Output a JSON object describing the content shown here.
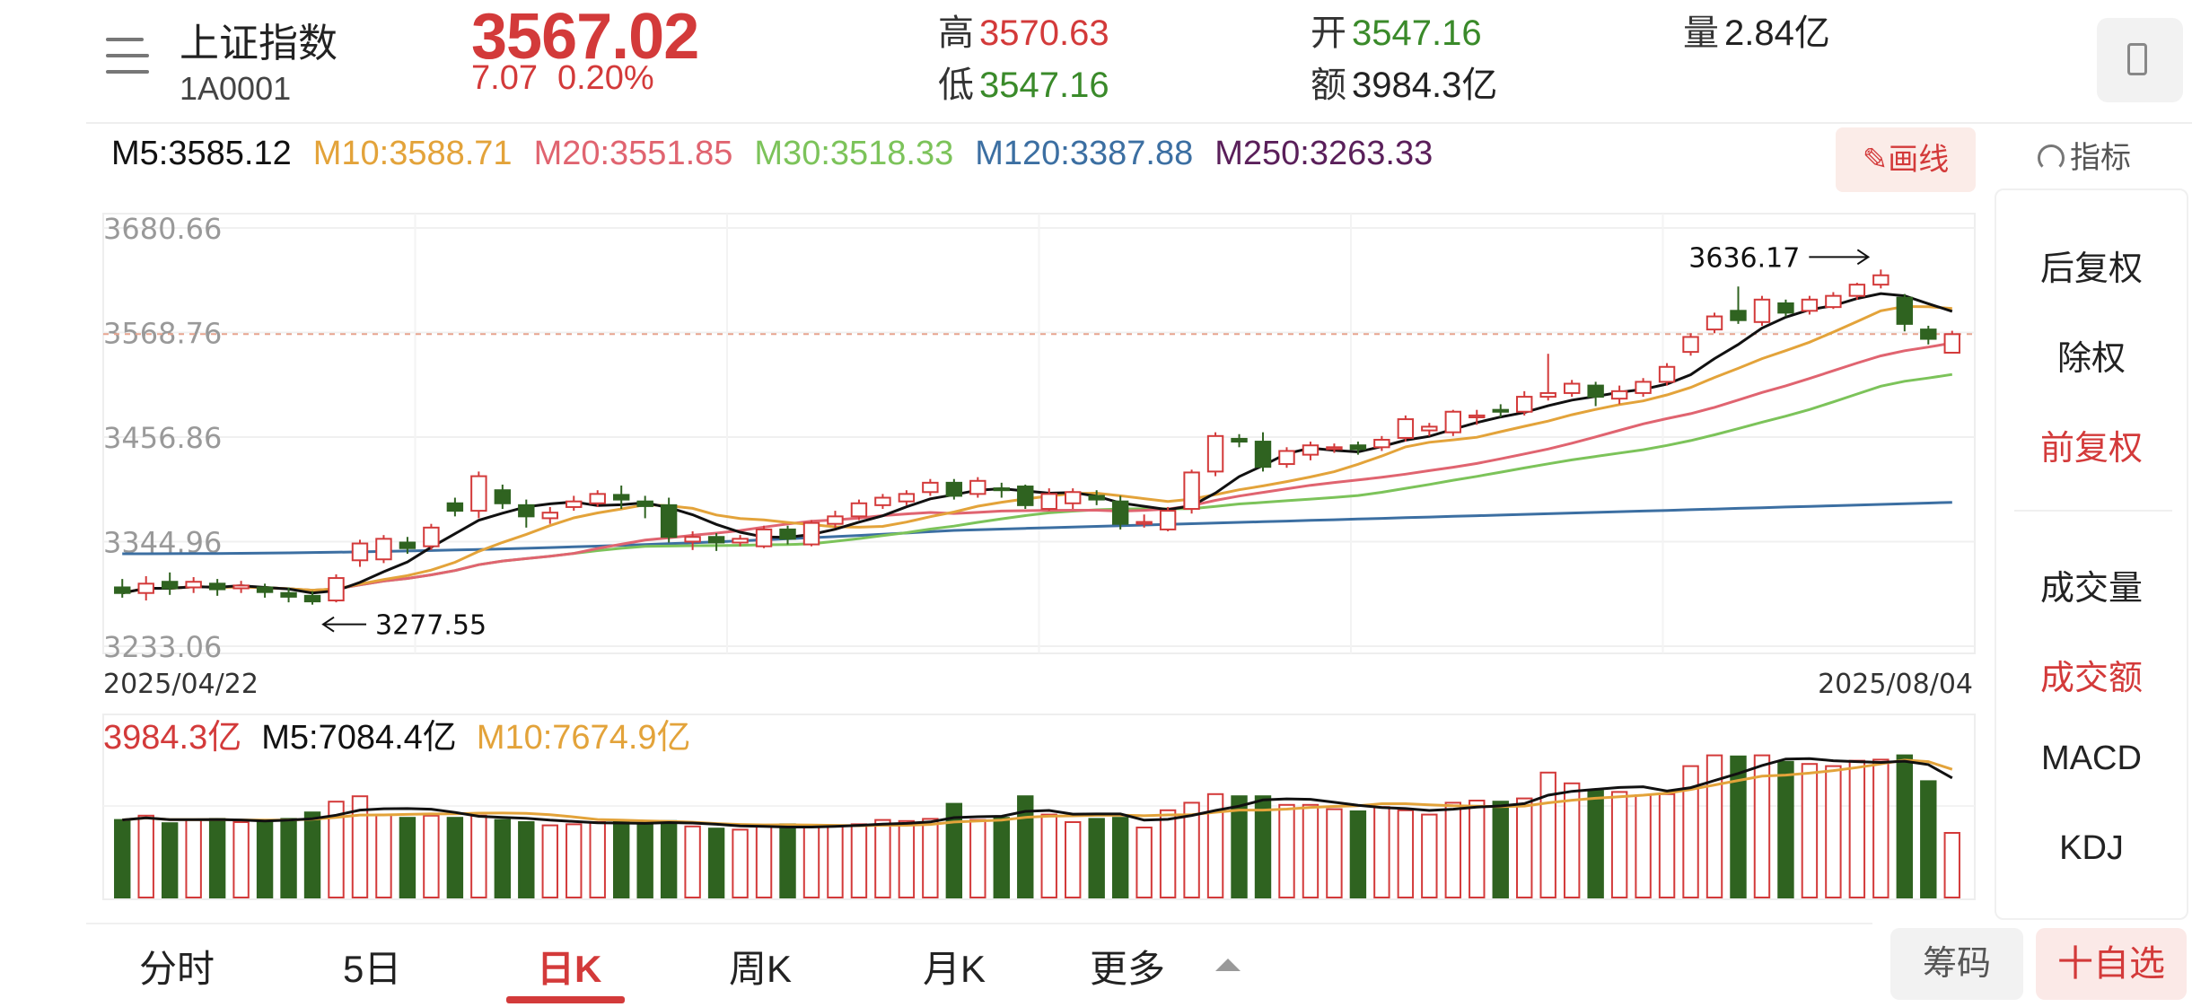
{
  "header": {
    "name": "上证指数",
    "code": "1A0001",
    "price": "3567.02",
    "change": "7.07",
    "change_pct": "0.20%",
    "high_label": "高",
    "high": "3570.63",
    "low_label": "低",
    "low": "3547.16",
    "open_label": "开",
    "open": "3547.16",
    "amount_label": "额",
    "amount": "3984.3亿",
    "volume_label": "量",
    "volume": "2.84亿"
  },
  "ma": {
    "m5": "M5:3585.12",
    "m10": "M10:3588.71",
    "m20": "M20:3551.85",
    "m30": "M30:3518.33",
    "m120": "M120:3387.88",
    "m250": "M250:3263.33"
  },
  "toolbar": {
    "draw_label": "画线",
    "indicator_label": "指标"
  },
  "colors": {
    "up": "#d33a3a",
    "down": "#2f6320",
    "ma5": "#111111",
    "ma10": "#e3a33a",
    "ma20": "#e06470",
    "ma30": "#7cc35a",
    "ma120": "#3c6fa2",
    "ma250": "#5a1f5a"
  },
  "chart_data": {
    "type": "candlestick",
    "y_ticks": [
      "3680.66",
      "3568.76",
      "3456.86",
      "3344.96",
      "3233.06"
    ],
    "ylim": [
      3233.06,
      3680.66
    ],
    "x_start": "2025/04/22",
    "x_end": "2025/08/04",
    "high_annotation": "3636.17",
    "low_annotation": "3277.55",
    "reference_price": 3567.02,
    "candles": [
      [
        3296,
        3290,
        3305,
        3285
      ],
      [
        3290,
        3300,
        3308,
        3282
      ],
      [
        3302,
        3295,
        3312,
        3288
      ],
      [
        3296,
        3302,
        3307,
        3290
      ],
      [
        3300,
        3294,
        3305,
        3287
      ],
      [
        3295,
        3298,
        3303,
        3290
      ],
      [
        3296,
        3291,
        3300,
        3285
      ],
      [
        3290,
        3286,
        3296,
        3280
      ],
      [
        3287,
        3281,
        3292,
        3277.55
      ],
      [
        3282,
        3306,
        3310,
        3280
      ],
      [
        3325,
        3343,
        3347,
        3318
      ],
      [
        3326,
        3348,
        3352,
        3322
      ],
      [
        3344,
        3338,
        3350,
        3332
      ],
      [
        3340,
        3360,
        3364,
        3336
      ],
      [
        3386,
        3378,
        3392,
        3372
      ],
      [
        3378,
        3415,
        3420,
        3370
      ],
      [
        3400,
        3386,
        3406,
        3380
      ],
      [
        3384,
        3372,
        3390,
        3360
      ],
      [
        3370,
        3376,
        3382,
        3364
      ],
      [
        3382,
        3388,
        3394,
        3378
      ],
      [
        3386,
        3396,
        3400,
        3382
      ],
      [
        3395,
        3390,
        3405,
        3380
      ],
      [
        3388,
        3383,
        3394,
        3370
      ],
      [
        3384,
        3350,
        3392,
        3344
      ],
      [
        3345,
        3350,
        3356,
        3336
      ],
      [
        3350,
        3344,
        3354,
        3335
      ],
      [
        3344,
        3348,
        3352,
        3340
      ],
      [
        3340,
        3358,
        3362,
        3338
      ],
      [
        3358,
        3348,
        3362,
        3342
      ],
      [
        3342,
        3365,
        3368,
        3340
      ],
      [
        3364,
        3372,
        3378,
        3360
      ],
      [
        3372,
        3386,
        3390,
        3368
      ],
      [
        3384,
        3392,
        3396,
        3380
      ],
      [
        3388,
        3396,
        3400,
        3384
      ],
      [
        3398,
        3408,
        3412,
        3394
      ],
      [
        3408,
        3394,
        3412,
        3390
      ],
      [
        3396,
        3410,
        3414,
        3392
      ],
      [
        3402,
        3400,
        3408,
        3392
      ],
      [
        3404,
        3384,
        3406,
        3380
      ],
      [
        3380,
        3396,
        3402,
        3378
      ],
      [
        3386,
        3398,
        3402,
        3380
      ],
      [
        3394,
        3390,
        3400,
        3384
      ],
      [
        3388,
        3364,
        3394,
        3358
      ],
      [
        3364,
        3366,
        3374,
        3360
      ],
      [
        3358,
        3378,
        3382,
        3356
      ],
      [
        3380,
        3419,
        3422,
        3375
      ],
      [
        3420,
        3458,
        3462,
        3415
      ],
      [
        3455,
        3452,
        3460,
        3446
      ],
      [
        3452,
        3425,
        3462,
        3420
      ],
      [
        3428,
        3442,
        3446,
        3424
      ],
      [
        3438,
        3448,
        3452,
        3432
      ],
      [
        3444,
        3446,
        3450,
        3440
      ],
      [
        3448,
        3444,
        3452,
        3438
      ],
      [
        3446,
        3454,
        3458,
        3442
      ],
      [
        3456,
        3476,
        3480,
        3452
      ],
      [
        3464,
        3468,
        3472,
        3458
      ],
      [
        3462,
        3484,
        3486,
        3458
      ],
      [
        3478,
        3480,
        3486,
        3470
      ],
      [
        3486,
        3484,
        3492,
        3478
      ],
      [
        3484,
        3500,
        3506,
        3480
      ],
      [
        3500,
        3504,
        3546,
        3496
      ],
      [
        3504,
        3514,
        3518,
        3500
      ],
      [
        3512,
        3500,
        3516,
        3490
      ],
      [
        3498,
        3506,
        3512,
        3492
      ],
      [
        3504,
        3516,
        3520,
        3500
      ],
      [
        3516,
        3532,
        3536,
        3512
      ],
      [
        3548,
        3564,
        3568,
        3544
      ],
      [
        3572,
        3586,
        3590,
        3568
      ],
      [
        3592,
        3582,
        3618,
        3578
      ],
      [
        3580,
        3604,
        3608,
        3576
      ],
      [
        3600,
        3590,
        3604,
        3586
      ],
      [
        3592,
        3604,
        3608,
        3588
      ],
      [
        3596,
        3608,
        3612,
        3594
      ],
      [
        3608,
        3620,
        3622,
        3604
      ],
      [
        3620,
        3630,
        3636.17,
        3616
      ],
      [
        3606,
        3578,
        3610,
        3570
      ],
      [
        3572,
        3562,
        3576,
        3556
      ],
      [
        3547.16,
        3567.02,
        3570.63,
        3547.16
      ]
    ],
    "volume": {
      "label": "3984.3亿",
      "m5_label": "M5:7084.4亿",
      "m10_label": "M10:7674.9亿",
      "values": [
        7200,
        7600,
        6900,
        7200,
        7300,
        7000,
        7100,
        7300,
        7900,
        8900,
        9400,
        7700,
        7400,
        7600,
        7400,
        7600,
        7200,
        7000,
        6700,
        6800,
        7000,
        7100,
        6800,
        7100,
        6600,
        6400,
        6300,
        6600,
        6800,
        6600,
        6700,
        6800,
        7200,
        7100,
        7300,
        8700,
        7200,
        7400,
        9400,
        7700,
        7000,
        7300,
        7400,
        6500,
        8100,
        8800,
        9600,
        9400,
        9400,
        8600,
        8600,
        8200,
        8000,
        8400,
        8100,
        7700,
        8800,
        9000,
        8900,
        9200,
        11600,
        10600,
        9900,
        9800,
        9500,
        9600,
        12200,
        13200,
        13100,
        13200,
        12600,
        12400,
        12200,
        12700,
        12800,
        13200,
        10800,
        6000
      ]
    }
  },
  "side_panel": {
    "items": [
      "后复权",
      "除权",
      "前复权",
      "成交量",
      "成交额",
      "MACD",
      "KDJ"
    ]
  },
  "tabs": {
    "t1": "分时",
    "t2": "5日",
    "t3": "日K",
    "t4": "周K",
    "t5": "月K",
    "t6": "更多",
    "chip": "筹码",
    "fav": "十自选"
  }
}
